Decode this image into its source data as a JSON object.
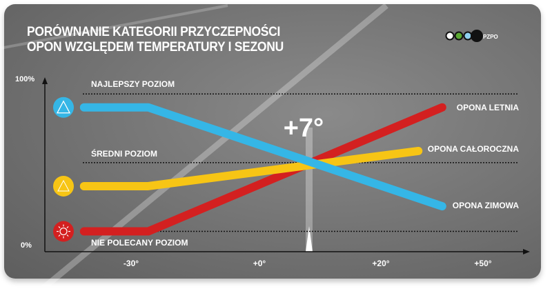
{
  "title_lines": [
    "PORÓWNANIE KATEGORII PRZYCZEPNOŚCI",
    "OPON WZGLĘDEM TEMPERATURY I SEZONU"
  ],
  "logo": {
    "text": "PZPO",
    "circle_colors": [
      "#ffffff",
      "#5aa832",
      "#8fd0f0",
      "#111111"
    ]
  },
  "chart_data": {
    "type": "line",
    "title": "PORÓWNANIE KATEGORII PRZYCZEPNOŚCI OPON WZGLĘDEM TEMPERATURY I SEZONU",
    "xlabel": "",
    "ylabel": "",
    "x_ticks": [
      "-30°",
      "+0°",
      "+20°",
      "+50°"
    ],
    "x_tick_values": [
      -30,
      0,
      20,
      50
    ],
    "y_ticks": [
      "0%",
      "100%"
    ],
    "ylim": [
      0,
      100
    ],
    "reference_levels": [
      {
        "label": "NAJLEPSZY POZIOM",
        "value": 90
      },
      {
        "label": "ŚREDNI POZIOM",
        "value": 49
      },
      {
        "label": "NIE POLECANY POZIOM",
        "value": 8
      }
    ],
    "annotation": {
      "text": "+7°",
      "x": 7
    },
    "series": [
      {
        "name": "OPONA LETNIA",
        "color": "#d32020",
        "icon": "sun-icon",
        "x": [
          -41,
          -26,
          38
        ],
        "y": [
          8,
          8,
          82
        ]
      },
      {
        "name": "OPONA CAŁOROCZNA",
        "color": "#f7c515",
        "icon": "sun-snow-icon",
        "x": [
          -41,
          -26,
          31
        ],
        "y": [
          35,
          35,
          56
        ]
      },
      {
        "name": "OPONA ZIMOWA",
        "color": "#35b6e6",
        "icon": "snowflake-mountain-icon",
        "x": [
          -41,
          -26,
          38
        ],
        "y": [
          82,
          82,
          23
        ]
      }
    ],
    "grid": false,
    "legend": "right (inline labels)"
  }
}
